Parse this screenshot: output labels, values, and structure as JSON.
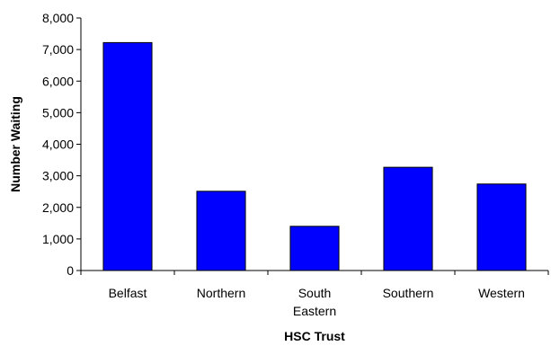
{
  "chart_data": {
    "type": "bar",
    "categories": [
      [
        "Belfast"
      ],
      [
        "Northern"
      ],
      [
        "South",
        "Eastern"
      ],
      [
        "Southern"
      ],
      [
        "Western"
      ]
    ],
    "values": [
      7220,
      2510,
      1400,
      3270,
      2740
    ],
    "title": "",
    "xlabel": "HSC Trust",
    "ylabel": "Number Waiting",
    "ylim": [
      0,
      8000
    ],
    "yticks": [
      0,
      1000,
      2000,
      3000,
      4000,
      5000,
      6000,
      7000,
      8000
    ],
    "ytick_labels": [
      "0",
      "1,000",
      "2,000",
      "3,000",
      "4,000",
      "5,000",
      "6,000",
      "7,000",
      "8,000"
    ],
    "bar_color": "#0000ff",
    "grid": false,
    "legend": "none"
  }
}
